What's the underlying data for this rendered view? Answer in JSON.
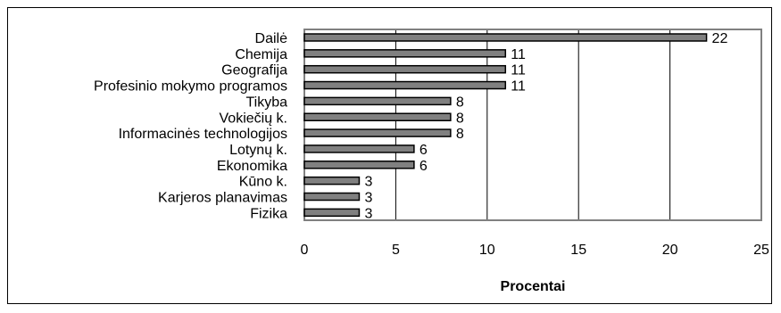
{
  "chart_data": {
    "type": "bar",
    "orientation": "horizontal",
    "categories": [
      "Dailė",
      "Chemija",
      "Geografija",
      "Profesinio mokymo programos",
      "Tikyba",
      "Vokiečių k.",
      "Informacinės technologijos",
      "Lotynų k.",
      "Ekonomika",
      "Kūno k.",
      "Karjeros planavimas",
      "Fizika"
    ],
    "values": [
      22,
      11,
      11,
      11,
      8,
      8,
      8,
      6,
      6,
      3,
      3,
      3
    ],
    "value_labels": [
      "22",
      "11",
      "11",
      "11",
      "8",
      "8",
      "8",
      "6",
      "6",
      "3",
      "3",
      "3"
    ],
    "xlabel": "Procentai",
    "xlim": [
      0,
      25
    ],
    "xticks": [
      0,
      5,
      10,
      15,
      20,
      25
    ],
    "xtick_labels": [
      "0",
      "5",
      "10",
      "15",
      "20",
      "25"
    ],
    "grid": "vertical",
    "bar_color": "#808080",
    "bar_edge_color": "#000000",
    "plot_border_color": "#808080"
  }
}
